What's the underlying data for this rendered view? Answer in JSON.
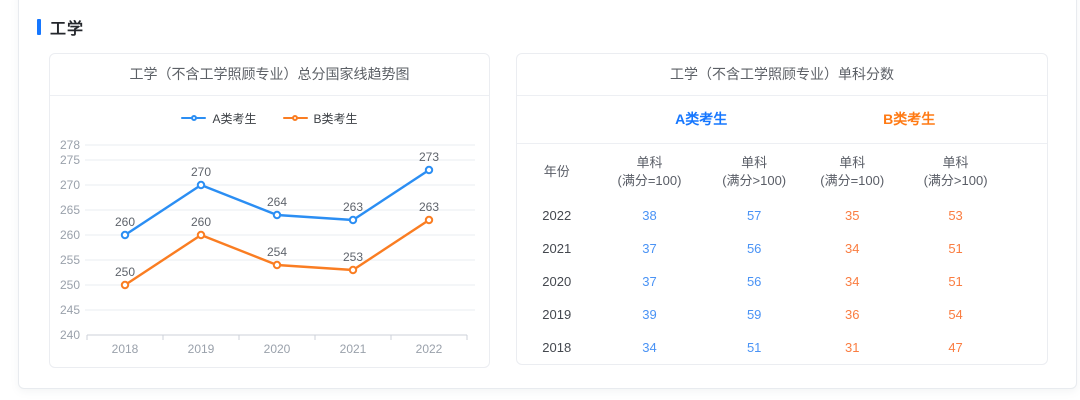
{
  "section": {
    "title": "工学"
  },
  "colors": {
    "accent_blue": "#1677ff",
    "accent_orange": "#ff7a14",
    "chart_blue": "#2b8ef3",
    "chart_orange": "#fa7d22",
    "table_blue": "#4a93f5",
    "table_orange": "#fa7d41",
    "grid_line": "#e8ecf2",
    "axis_line": "#ccd1d9",
    "axis_text": "#9aa1ab",
    "data_label": "#5f646c"
  },
  "chart_card": {
    "title": "工学（不含工学照顾专业）总分国家线趋势图"
  },
  "chart_data": {
    "type": "line",
    "title": "工学（不含工学照顾专业）总分国家线趋势图",
    "x": [
      "2018",
      "2019",
      "2020",
      "2021",
      "2022"
    ],
    "series": [
      {
        "name": "A类考生",
        "color": "#2b8ef3",
        "values": [
          260,
          270,
          264,
          263,
          273
        ]
      },
      {
        "name": "B类考生",
        "color": "#fa7d22",
        "values": [
          250,
          260,
          254,
          253,
          263
        ]
      }
    ],
    "yticks": [
      240,
      245,
      250,
      255,
      260,
      265,
      270,
      275,
      278
    ],
    "ylim": [
      240,
      278
    ],
    "legend_position": "top",
    "grid": true,
    "point_labels": true
  },
  "table_card": {
    "title": "工学（不含工学照顾专业）单科分数",
    "groups": [
      {
        "label": "A类考生",
        "color": "#1677ff"
      },
      {
        "label": "B类考生",
        "color": "#ff7a14"
      }
    ],
    "columns": [
      {
        "l1": "年份",
        "l2": ""
      },
      {
        "l1": "单科",
        "l2": "(满分=100)"
      },
      {
        "l1": "单科",
        "l2": "(满分>100)"
      },
      {
        "l1": "单科",
        "l2": "(满分=100)"
      },
      {
        "l1": "单科",
        "l2": "(满分>100)"
      }
    ],
    "rows": [
      {
        "year": "2022",
        "values": [
          "38",
          "57",
          "35",
          "53"
        ]
      },
      {
        "year": "2021",
        "values": [
          "37",
          "56",
          "34",
          "51"
        ]
      },
      {
        "year": "2020",
        "values": [
          "37",
          "56",
          "34",
          "51"
        ]
      },
      {
        "year": "2019",
        "values": [
          "39",
          "59",
          "36",
          "54"
        ]
      },
      {
        "year": "2018",
        "values": [
          "34",
          "51",
          "31",
          "47"
        ]
      }
    ]
  }
}
